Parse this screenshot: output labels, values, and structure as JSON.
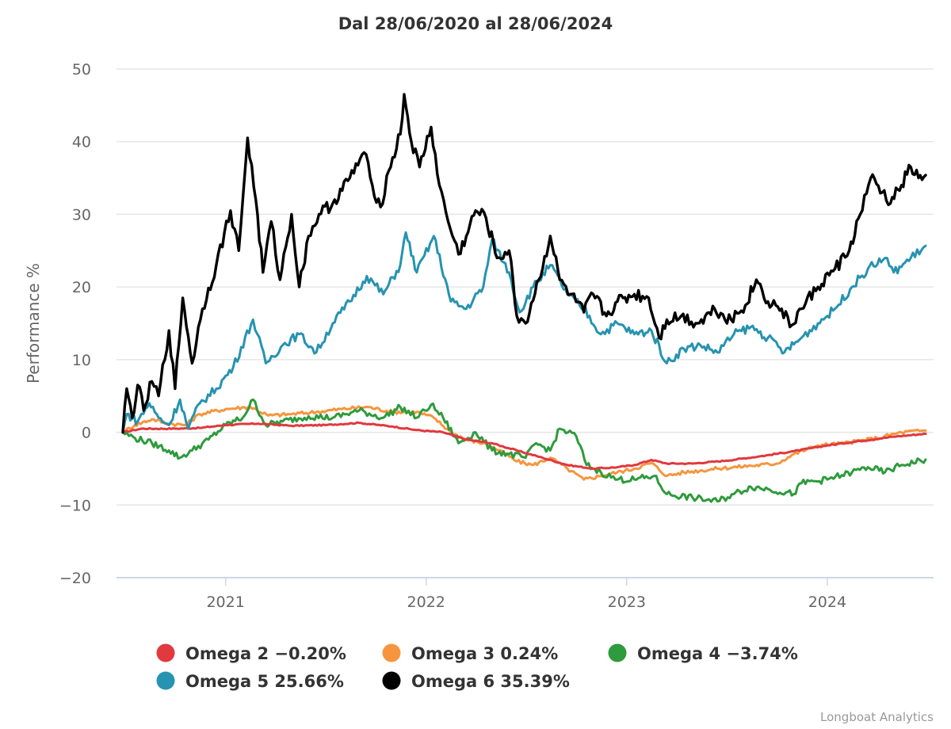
{
  "chart_data": {
    "type": "line",
    "title": "Dal 28/06/2020 al 28/06/2024",
    "xlabel": "",
    "ylabel": "Performance %",
    "x_range": [
      "2020-06-28",
      "2024-06-28"
    ],
    "ylim": [
      -20,
      50
    ],
    "y_ticks": [
      50,
      40,
      30,
      20,
      10,
      0,
      -10,
      -20
    ],
    "y_tick_labels": [
      "50",
      "40",
      "30",
      "20",
      "10",
      "0",
      "−10",
      "−20"
    ],
    "x_ticks": [
      "2021-01-01",
      "2022-01-01",
      "2023-01-01",
      "2024-01-01"
    ],
    "x_tick_labels": [
      "2021",
      "2022",
      "2023",
      "2024"
    ],
    "grid": true,
    "legend_position": "bottom-center",
    "series": [
      {
        "name": "Omega 2",
        "legend_label": "Omega 2 −0.20%",
        "final_value": -0.2,
        "color": "#e0393e",
        "points": [
          [
            "2020-06-28",
            0.0
          ],
          [
            "2020-08-01",
            0.5
          ],
          [
            "2020-10-01",
            0.5
          ],
          [
            "2020-11-15",
            0.6
          ],
          [
            "2021-01-01",
            1.0
          ],
          [
            "2021-03-01",
            1.2
          ],
          [
            "2021-05-01",
            0.9
          ],
          [
            "2021-07-01",
            1.0
          ],
          [
            "2021-09-01",
            1.3
          ],
          [
            "2021-11-01",
            0.8
          ],
          [
            "2021-12-15",
            0.3
          ],
          [
            "2022-02-01",
            0.0
          ],
          [
            "2022-03-15",
            -1.0
          ],
          [
            "2022-05-01",
            -1.5
          ],
          [
            "2022-06-15",
            -2.5
          ],
          [
            "2022-08-01",
            -3.5
          ],
          [
            "2022-09-15",
            -4.5
          ],
          [
            "2022-11-01",
            -5.0
          ],
          [
            "2022-12-15",
            -4.8
          ],
          [
            "2023-01-15",
            -4.5
          ],
          [
            "2023-02-15",
            -3.8
          ],
          [
            "2023-03-15",
            -4.3
          ],
          [
            "2023-05-01",
            -4.3
          ],
          [
            "2023-07-01",
            -3.9
          ],
          [
            "2023-09-01",
            -3.3
          ],
          [
            "2023-11-01",
            -2.6
          ],
          [
            "2024-01-01",
            -1.8
          ],
          [
            "2024-03-01",
            -1.2
          ],
          [
            "2024-05-01",
            -0.6
          ],
          [
            "2024-06-28",
            -0.2
          ]
        ]
      },
      {
        "name": "Omega 3",
        "legend_label": "Omega 3 0.24%",
        "final_value": 0.24,
        "color": "#f7953e",
        "points": [
          [
            "2020-06-28",
            0.0
          ],
          [
            "2020-07-20",
            1.0
          ],
          [
            "2020-08-20",
            1.8
          ],
          [
            "2020-09-20",
            1.2
          ],
          [
            "2020-10-20",
            1.0
          ],
          [
            "2020-11-15",
            2.5
          ],
          [
            "2021-01-01",
            3.2
          ],
          [
            "2021-02-15",
            3.5
          ],
          [
            "2021-03-20",
            2.3
          ],
          [
            "2021-05-01",
            2.5
          ],
          [
            "2021-06-15",
            2.8
          ],
          [
            "2021-08-01",
            3.2
          ],
          [
            "2021-09-15",
            3.5
          ],
          [
            "2021-11-01",
            2.8
          ],
          [
            "2021-12-15",
            2.8
          ],
          [
            "2022-01-15",
            2.0
          ],
          [
            "2022-02-15",
            0.0
          ],
          [
            "2022-03-15",
            -1.0
          ],
          [
            "2022-04-15",
            -1.5
          ],
          [
            "2022-05-15",
            -2.5
          ],
          [
            "2022-06-15",
            -4.0
          ],
          [
            "2022-07-15",
            -4.5
          ],
          [
            "2022-08-15",
            -3.5
          ],
          [
            "2022-09-15",
            -5.0
          ],
          [
            "2022-10-15",
            -6.5
          ],
          [
            "2022-11-15",
            -6.0
          ],
          [
            "2022-12-15",
            -5.5
          ],
          [
            "2023-01-15",
            -5.0
          ],
          [
            "2023-02-15",
            -4.2
          ],
          [
            "2023-03-15",
            -6.0
          ],
          [
            "2023-04-15",
            -5.5
          ],
          [
            "2023-06-15",
            -5.0
          ],
          [
            "2023-08-15",
            -4.6
          ],
          [
            "2023-10-01",
            -4.3
          ],
          [
            "2023-11-01",
            -3.0
          ],
          [
            "2023-12-15",
            -1.8
          ],
          [
            "2024-02-01",
            -1.5
          ],
          [
            "2024-04-01",
            -0.8
          ],
          [
            "2024-05-15",
            0.0
          ],
          [
            "2024-06-28",
            0.24
          ]
        ]
      },
      {
        "name": "Omega 4",
        "legend_label": "Omega 4 −3.74%",
        "final_value": -3.74,
        "color": "#2e9b3c",
        "points": [
          [
            "2020-06-28",
            0.0
          ],
          [
            "2020-07-20",
            -0.8
          ],
          [
            "2020-08-20",
            -1.5
          ],
          [
            "2020-09-20",
            -2.5
          ],
          [
            "2020-10-10",
            -3.5
          ],
          [
            "2020-11-01",
            -2.5
          ],
          [
            "2020-12-01",
            -1.0
          ],
          [
            "2021-01-01",
            1.0
          ],
          [
            "2021-02-01",
            2.0
          ],
          [
            "2021-02-20",
            4.5
          ],
          [
            "2021-03-15",
            1.0
          ],
          [
            "2021-04-15",
            1.5
          ],
          [
            "2021-06-01",
            2.2
          ],
          [
            "2021-07-15",
            2.0
          ],
          [
            "2021-09-01",
            3.0
          ],
          [
            "2021-10-15",
            2.0
          ],
          [
            "2021-11-15",
            3.5
          ],
          [
            "2021-12-15",
            2.0
          ],
          [
            "2022-01-10",
            3.8
          ],
          [
            "2022-02-01",
            2.0
          ],
          [
            "2022-03-01",
            -1.5
          ],
          [
            "2022-04-01",
            0.0
          ],
          [
            "2022-05-01",
            -2.5
          ],
          [
            "2022-06-01",
            -3.0
          ],
          [
            "2022-07-01",
            -3.5
          ],
          [
            "2022-07-20",
            -1.5
          ],
          [
            "2022-08-15",
            -2.5
          ],
          [
            "2022-09-01",
            0.5
          ],
          [
            "2022-10-01",
            -0.5
          ],
          [
            "2022-10-20",
            -4.5
          ],
          [
            "2022-11-15",
            -5.5
          ],
          [
            "2022-12-15",
            -6.5
          ],
          [
            "2023-01-15",
            -6.5
          ],
          [
            "2023-02-20",
            -6.0
          ],
          [
            "2023-03-15",
            -8.5
          ],
          [
            "2023-05-01",
            -9.0
          ],
          [
            "2023-06-15",
            -9.5
          ],
          [
            "2023-07-15",
            -8.5
          ],
          [
            "2023-08-15",
            -7.5
          ],
          [
            "2023-09-15",
            -7.8
          ],
          [
            "2023-11-01",
            -8.5
          ],
          [
            "2023-11-15",
            -7.0
          ],
          [
            "2024-01-01",
            -6.5
          ],
          [
            "2024-02-15",
            -5.5
          ],
          [
            "2024-03-15",
            -4.8
          ],
          [
            "2024-04-15",
            -5.5
          ],
          [
            "2024-05-15",
            -4.5
          ],
          [
            "2024-06-28",
            -3.74
          ]
        ]
      },
      {
        "name": "Omega 5",
        "legend_label": "Omega 5 25.66%",
        "final_value": 25.66,
        "color": "#2693b0",
        "points": [
          [
            "2020-06-28",
            0.0
          ],
          [
            "2020-07-05",
            2.5
          ],
          [
            "2020-07-25",
            1.5
          ],
          [
            "2020-08-15",
            4.0
          ],
          [
            "2020-09-01",
            2.0
          ],
          [
            "2020-09-20",
            1.0
          ],
          [
            "2020-10-10",
            4.5
          ],
          [
            "2020-10-25",
            0.5
          ],
          [
            "2020-11-15",
            4.0
          ],
          [
            "2020-12-15",
            6.0
          ],
          [
            "2021-01-15",
            9.0
          ],
          [
            "2021-02-20",
            15.5
          ],
          [
            "2021-03-15",
            9.5
          ],
          [
            "2021-04-15",
            12.0
          ],
          [
            "2021-05-15",
            13.5
          ],
          [
            "2021-06-15",
            11.0
          ],
          [
            "2021-07-15",
            15.0
          ],
          [
            "2021-08-15",
            18.0
          ],
          [
            "2021-09-15",
            21.5
          ],
          [
            "2021-10-15",
            19.0
          ],
          [
            "2021-11-15",
            23.0
          ],
          [
            "2021-11-25",
            27.5
          ],
          [
            "2021-12-15",
            22.0
          ],
          [
            "2022-01-15",
            27.0
          ],
          [
            "2022-02-15",
            18.0
          ],
          [
            "2022-03-15",
            17.0
          ],
          [
            "2022-04-15",
            20.0
          ],
          [
            "2022-05-01",
            26.5
          ],
          [
            "2022-06-01",
            22.0
          ],
          [
            "2022-06-20",
            16.5
          ],
          [
            "2022-07-15",
            20.0
          ],
          [
            "2022-08-15",
            23.0
          ],
          [
            "2022-09-15",
            19.0
          ],
          [
            "2022-10-15",
            17.0
          ],
          [
            "2022-11-15",
            13.5
          ],
          [
            "2022-12-15",
            15.0
          ],
          [
            "2023-01-15",
            13.5
          ],
          [
            "2023-02-15",
            14.0
          ],
          [
            "2023-03-15",
            9.5
          ],
          [
            "2023-04-15",
            11.5
          ],
          [
            "2023-05-15",
            12.0
          ],
          [
            "2023-06-15",
            11.0
          ],
          [
            "2023-07-15",
            13.5
          ],
          [
            "2023-08-15",
            14.5
          ],
          [
            "2023-09-15",
            13.0
          ],
          [
            "2023-10-15",
            11.0
          ],
          [
            "2023-11-15",
            13.0
          ],
          [
            "2023-12-15",
            15.0
          ],
          [
            "2024-01-15",
            17.0
          ],
          [
            "2024-02-15",
            20.0
          ],
          [
            "2024-03-15",
            22.5
          ],
          [
            "2024-04-15",
            24.0
          ],
          [
            "2024-05-01",
            22.0
          ],
          [
            "2024-06-01",
            24.0
          ],
          [
            "2024-06-28",
            25.66
          ]
        ]
      },
      {
        "name": "Omega 6",
        "legend_label": "Omega 6 35.39%",
        "final_value": 35.39,
        "color": "#000000",
        "points": [
          [
            "2020-06-28",
            0.0
          ],
          [
            "2020-07-05",
            6.0
          ],
          [
            "2020-07-15",
            2.0
          ],
          [
            "2020-07-25",
            6.5
          ],
          [
            "2020-08-05",
            3.0
          ],
          [
            "2020-08-20",
            7.0
          ],
          [
            "2020-09-01",
            5.0
          ],
          [
            "2020-09-20",
            14.0
          ],
          [
            "2020-10-01",
            6.0
          ],
          [
            "2020-10-15",
            18.5
          ],
          [
            "2020-11-01",
            9.5
          ],
          [
            "2020-11-20",
            17.0
          ],
          [
            "2020-12-15",
            23.0
          ],
          [
            "2021-01-10",
            30.5
          ],
          [
            "2021-01-25",
            25.0
          ],
          [
            "2021-02-10",
            40.5
          ],
          [
            "2021-02-25",
            32.0
          ],
          [
            "2021-03-10",
            22.0
          ],
          [
            "2021-03-25",
            29.0
          ],
          [
            "2021-04-10",
            21.0
          ],
          [
            "2021-05-01",
            30.0
          ],
          [
            "2021-05-15",
            20.0
          ],
          [
            "2021-06-01",
            27.0
          ],
          [
            "2021-06-20",
            30.0
          ],
          [
            "2021-07-15",
            31.5
          ],
          [
            "2021-08-15",
            35.0
          ],
          [
            "2021-09-10",
            38.5
          ],
          [
            "2021-09-25",
            34.0
          ],
          [
            "2021-10-10",
            31.0
          ],
          [
            "2021-10-25",
            36.0
          ],
          [
            "2021-11-15",
            41.0
          ],
          [
            "2021-11-22",
            46.5
          ],
          [
            "2021-12-05",
            40.0
          ],
          [
            "2021-12-20",
            36.5
          ],
          [
            "2022-01-10",
            42.0
          ],
          [
            "2022-01-25",
            34.0
          ],
          [
            "2022-02-10",
            29.0
          ],
          [
            "2022-03-01",
            24.5
          ],
          [
            "2022-03-15",
            27.0
          ],
          [
            "2022-04-01",
            30.5
          ],
          [
            "2022-04-20",
            29.5
          ],
          [
            "2022-05-10",
            24.0
          ],
          [
            "2022-06-01",
            25.0
          ],
          [
            "2022-06-15",
            16.0
          ],
          [
            "2022-07-01",
            15.0
          ],
          [
            "2022-07-25",
            21.0
          ],
          [
            "2022-08-15",
            27.0
          ],
          [
            "2022-09-01",
            21.0
          ],
          [
            "2022-09-20",
            19.0
          ],
          [
            "2022-10-15",
            16.5
          ],
          [
            "2022-11-01",
            19.0
          ],
          [
            "2022-11-25",
            16.0
          ],
          [
            "2022-12-15",
            18.0
          ],
          [
            "2023-01-15",
            19.0
          ],
          [
            "2023-02-10",
            18.5
          ],
          [
            "2023-03-01",
            13.0
          ],
          [
            "2023-03-15",
            15.5
          ],
          [
            "2023-04-10",
            16.0
          ],
          [
            "2023-05-10",
            15.0
          ],
          [
            "2023-06-10",
            17.0
          ],
          [
            "2023-07-10",
            15.5
          ],
          [
            "2023-08-05",
            17.5
          ],
          [
            "2023-08-25",
            21.0
          ],
          [
            "2023-09-15",
            18.0
          ],
          [
            "2023-10-10",
            17.0
          ],
          [
            "2023-10-25",
            14.5
          ],
          [
            "2023-11-15",
            17.0
          ],
          [
            "2023-12-15",
            20.0
          ],
          [
            "2024-01-15",
            22.5
          ],
          [
            "2024-02-10",
            25.0
          ],
          [
            "2024-03-01",
            30.0
          ],
          [
            "2024-03-20",
            35.0
          ],
          [
            "2024-04-10",
            33.0
          ],
          [
            "2024-04-25",
            31.5
          ],
          [
            "2024-05-15",
            34.0
          ],
          [
            "2024-06-01",
            36.5
          ],
          [
            "2024-06-15",
            35.0
          ],
          [
            "2024-06-28",
            35.39
          ]
        ]
      }
    ]
  },
  "credits": "Longboat Analytics"
}
